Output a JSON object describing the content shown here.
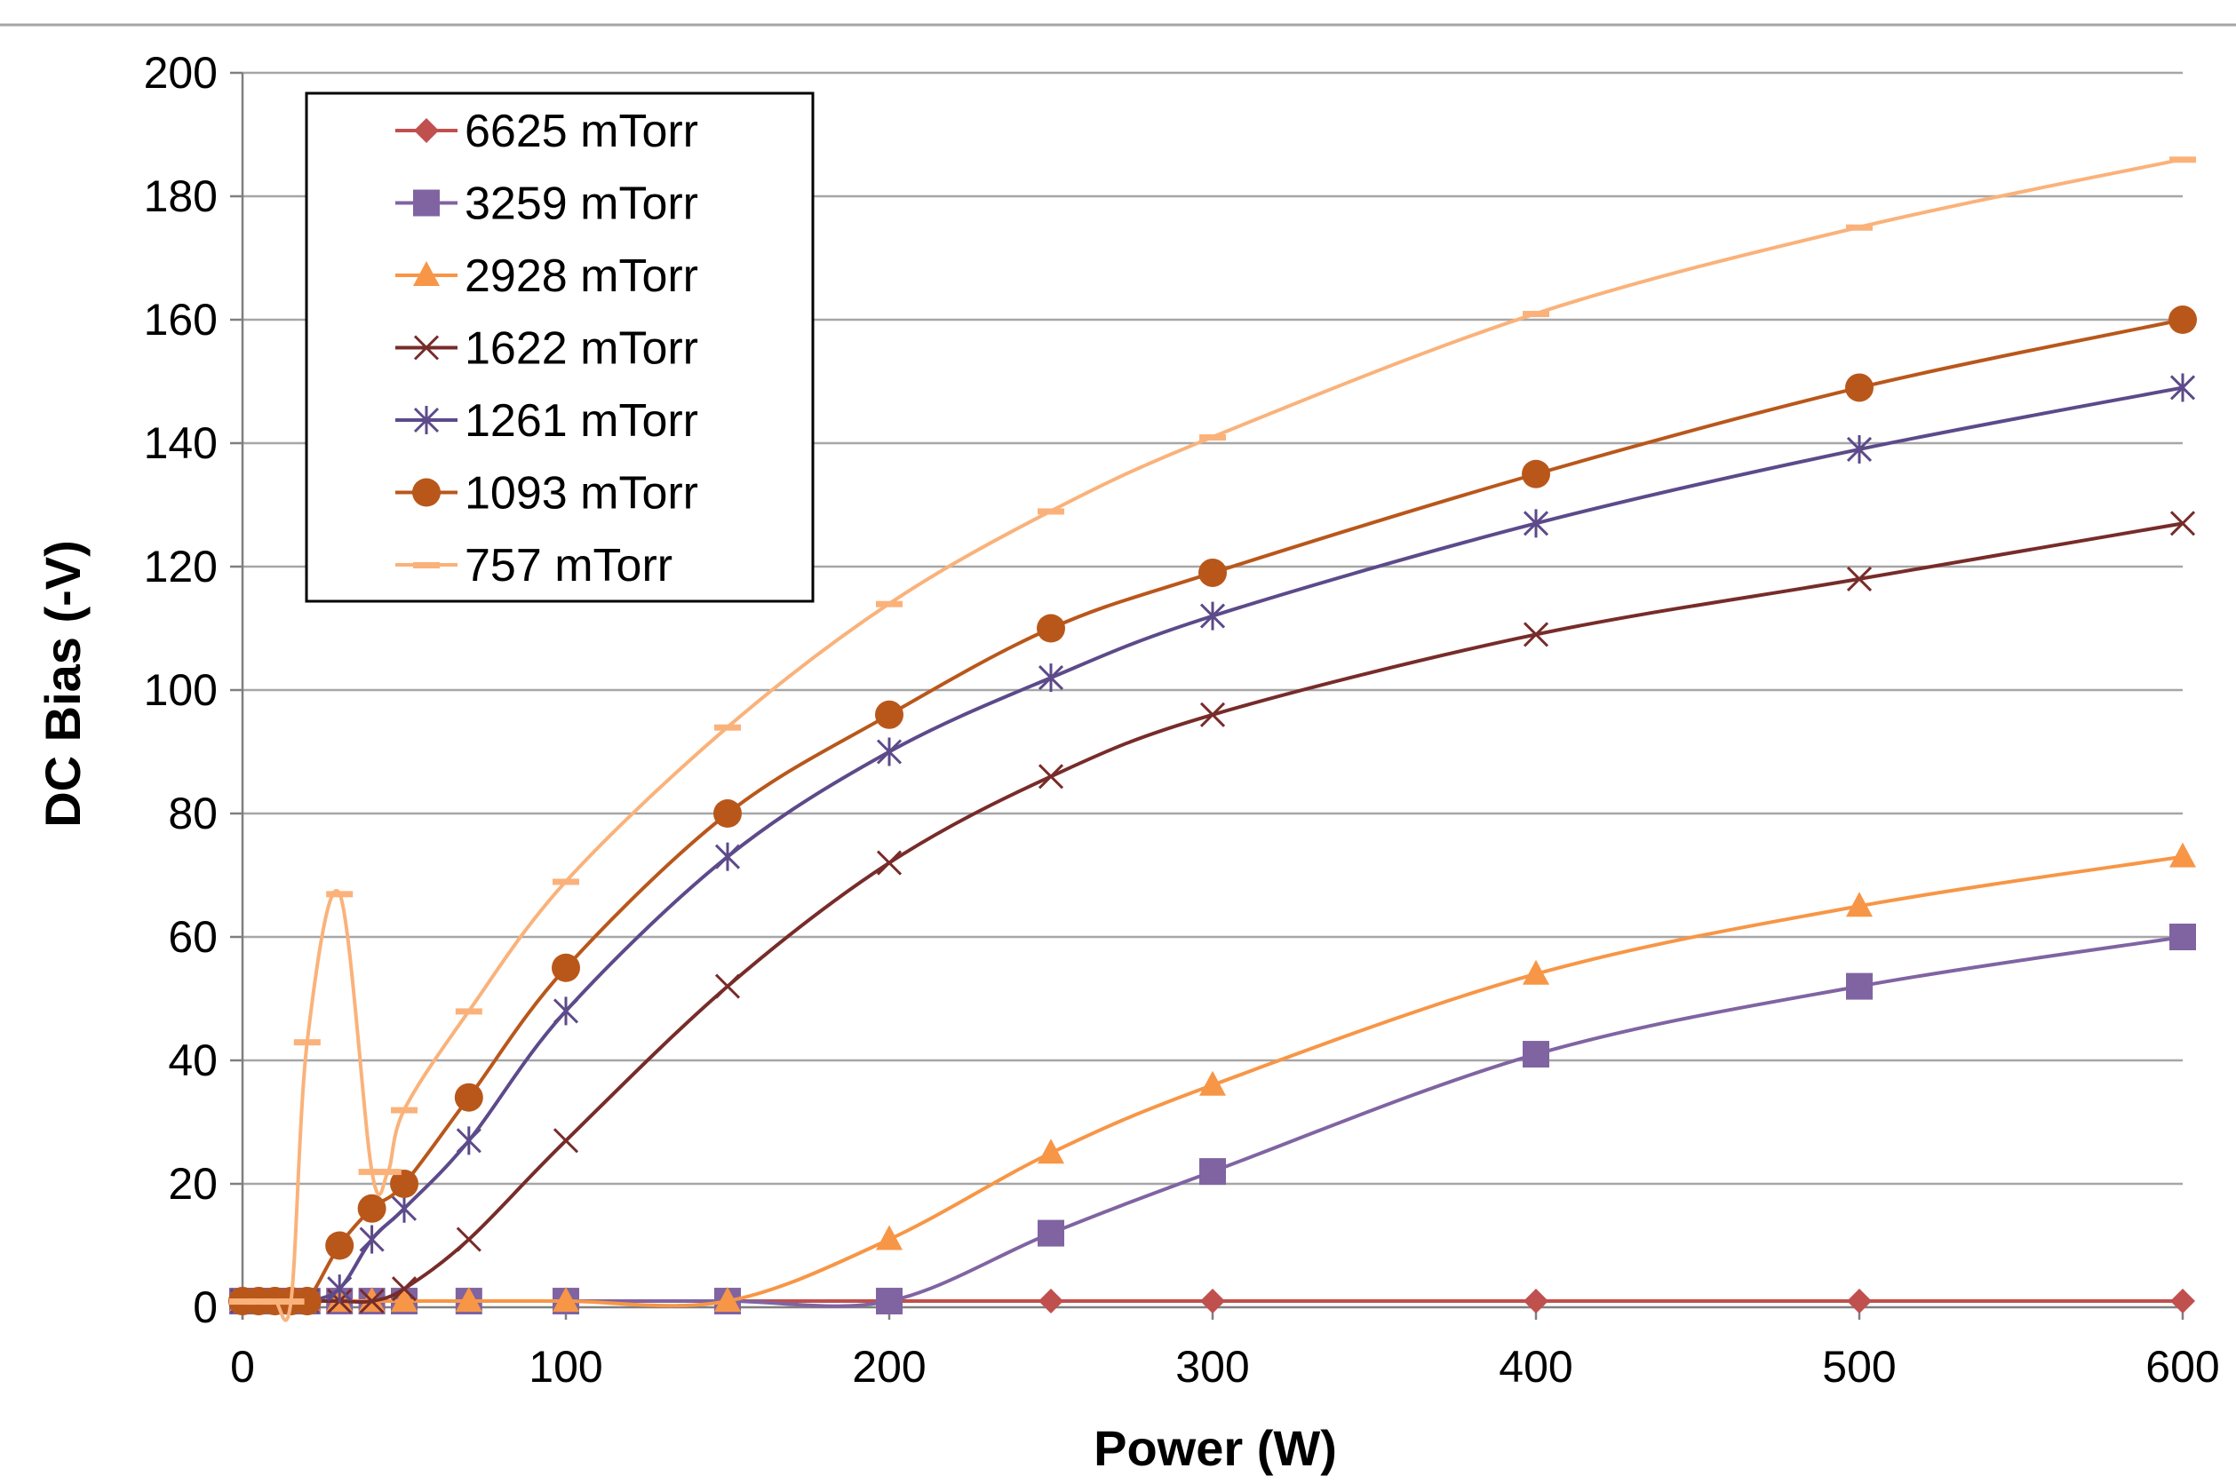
{
  "chart_data": {
    "type": "line",
    "title": "",
    "xlabel": "Power (W)",
    "ylabel": "DC Bias (-V)",
    "xlim": [
      0,
      600
    ],
    "ylim": [
      0,
      200
    ],
    "xticks": [
      0,
      100,
      200,
      300,
      400,
      500,
      600
    ],
    "yticks": [
      0,
      20,
      40,
      60,
      80,
      100,
      120,
      140,
      160,
      180,
      200
    ],
    "grid": "horizontal",
    "legend_position": "top-left",
    "series": [
      {
        "name": "6625 mTorr",
        "color": "#c0504d",
        "marker": "diamond",
        "x": [
          0,
          5,
          10,
          15,
          20,
          30,
          40,
          50,
          70,
          100,
          150,
          200,
          250,
          300,
          400,
          500,
          600
        ],
        "y": [
          1,
          1,
          1,
          1,
          1,
          1,
          1,
          1,
          1,
          1,
          1,
          1,
          1,
          1,
          1,
          1,
          1
        ]
      },
      {
        "name": "3259 mTorr",
        "color": "#8064a2",
        "marker": "square",
        "x": [
          0,
          5,
          10,
          15,
          20,
          30,
          40,
          50,
          70,
          100,
          150,
          200,
          250,
          300,
          400,
          500,
          600
        ],
        "y": [
          1,
          1,
          1,
          1,
          1,
          1,
          1,
          1,
          1,
          1,
          1,
          1,
          12,
          22,
          41,
          52,
          60
        ]
      },
      {
        "name": "2928 mTorr",
        "color": "#f79646",
        "marker": "triangle",
        "x": [
          0,
          5,
          10,
          15,
          20,
          30,
          40,
          50,
          70,
          100,
          150,
          200,
          250,
          300,
          400,
          500,
          600
        ],
        "y": [
          1,
          1,
          1,
          1,
          1,
          1,
          1,
          1,
          1,
          1,
          1,
          11,
          25,
          36,
          54,
          65,
          73
        ]
      },
      {
        "name": "1622 mTorr",
        "color": "#772c2a",
        "marker": "x",
        "x": [
          0,
          5,
          10,
          15,
          20,
          30,
          40,
          50,
          70,
          100,
          150,
          200,
          250,
          300,
          400,
          500,
          600
        ],
        "y": [
          1,
          1,
          1,
          1,
          1,
          1,
          1,
          3,
          11,
          27,
          52,
          72,
          86,
          96,
          109,
          118,
          127
        ]
      },
      {
        "name": "1261 mTorr",
        "color": "#5c4a8a",
        "marker": "asterisk",
        "x": [
          0,
          5,
          10,
          15,
          20,
          30,
          40,
          50,
          70,
          100,
          150,
          200,
          250,
          300,
          400,
          500,
          600
        ],
        "y": [
          1,
          1,
          1,
          1,
          1,
          3,
          11,
          16,
          27,
          48,
          73,
          90,
          102,
          112,
          127,
          139,
          149
        ]
      },
      {
        "name": "1093 mTorr",
        "color": "#b9571b",
        "marker": "circle",
        "x": [
          0,
          5,
          10,
          15,
          20,
          30,
          40,
          50,
          70,
          100,
          150,
          200,
          250,
          300,
          400,
          500,
          600
        ],
        "y": [
          1,
          1,
          1,
          1,
          1,
          10,
          16,
          20,
          34,
          55,
          80,
          96,
          110,
          119,
          135,
          149,
          160
        ]
      },
      {
        "name": "757 mTorr",
        "color": "#fab27a",
        "marker": "dash",
        "x": [
          0,
          5,
          10,
          15,
          20,
          30,
          40,
          45,
          50,
          70,
          100,
          150,
          200,
          250,
          300,
          400,
          500,
          600
        ],
        "y": [
          1,
          1,
          1,
          1,
          43,
          67,
          22,
          22,
          32,
          48,
          69,
          94,
          114,
          129,
          141,
          161,
          175,
          186
        ]
      }
    ]
  }
}
